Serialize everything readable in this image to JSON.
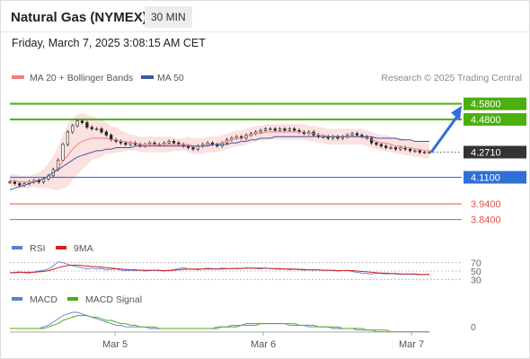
{
  "header": {
    "title": "Natural Gas (NYMEX)",
    "timeframe": "30 MIN"
  },
  "datetime": "Friday, March 7, 2025 3:08:15 AM CET",
  "legend": {
    "ma20_label": "MA 20 + Bollinger Bands",
    "ma50_label": "MA 50",
    "copyright": "Research © 2025 Trading Central",
    "ma20_color": "#f08080",
    "ma50_color": "#3b5a9a"
  },
  "chart_data": {
    "type": "line",
    "title": "",
    "y_range": [
      3.74,
      4.67
    ],
    "x_ticks": [
      "Mar 5",
      "Mar 6",
      "Mar 7"
    ],
    "price_series": [
      4.08,
      4.07,
      4.06,
      4.07,
      4.08,
      4.09,
      4.08,
      4.1,
      4.12,
      4.16,
      4.22,
      4.32,
      4.4,
      4.44,
      4.47,
      4.46,
      4.43,
      4.42,
      4.42,
      4.4,
      4.38,
      4.35,
      4.34,
      4.33,
      4.32,
      4.33,
      4.32,
      4.31,
      4.32,
      4.33,
      4.32,
      4.32,
      4.33,
      4.34,
      4.33,
      4.32,
      4.31,
      4.3,
      4.29,
      4.31,
      4.32,
      4.33,
      4.32,
      4.31,
      4.33,
      4.35,
      4.36,
      4.37,
      4.36,
      4.38,
      4.39,
      4.4,
      4.41,
      4.42,
      4.42,
      4.41,
      4.42,
      4.41,
      4.42,
      4.41,
      4.4,
      4.39,
      4.4,
      4.38,
      4.37,
      4.37,
      4.36,
      4.37,
      4.36,
      4.37,
      4.38,
      4.39,
      4.38,
      4.37,
      4.36,
      4.33,
      4.32,
      4.31,
      4.3,
      4.3,
      4.29,
      4.3,
      4.29,
      4.28,
      4.28,
      4.27,
      4.27,
      4.271
    ],
    "ma20_series": [
      4.09,
      4.09,
      4.08,
      4.08,
      4.08,
      4.09,
      4.09,
      4.1,
      4.12,
      4.14,
      4.17,
      4.21,
      4.25,
      4.29,
      4.32,
      4.34,
      4.35,
      4.36,
      4.36,
      4.36,
      4.36,
      4.35,
      4.35,
      4.34,
      4.34,
      4.33,
      4.33,
      4.32,
      4.32,
      4.32,
      4.32,
      4.32,
      4.32,
      4.32,
      4.32,
      4.32,
      4.32,
      4.32,
      4.31,
      4.31,
      4.31,
      4.32,
      4.32,
      4.32,
      4.33,
      4.34,
      4.35,
      4.36,
      4.36,
      4.37,
      4.38,
      4.39,
      4.39,
      4.4,
      4.4,
      4.4,
      4.4,
      4.4,
      4.4,
      4.4,
      4.4,
      4.4,
      4.39,
      4.39,
      4.38,
      4.38,
      4.37,
      4.37,
      4.37,
      4.37,
      4.37,
      4.37,
      4.37,
      4.37,
      4.36,
      4.35,
      4.34,
      4.33,
      4.33,
      4.32,
      4.31,
      4.31,
      4.3,
      4.3,
      4.29,
      4.29,
      4.28,
      4.28
    ],
    "ma50_series": [
      4.03,
      4.04,
      4.05,
      4.06,
      4.07,
      4.08,
      4.09,
      4.1,
      4.12,
      4.14,
      4.16,
      4.18,
      4.2,
      4.22,
      4.24,
      4.25,
      4.26,
      4.27,
      4.28,
      4.28,
      4.29,
      4.29,
      4.3,
      4.3,
      4.3,
      4.3,
      4.31,
      4.31,
      4.31,
      4.31,
      4.31,
      4.31,
      4.31,
      4.31,
      4.31,
      4.31,
      4.31,
      4.31,
      4.31,
      4.31,
      4.31,
      4.31,
      4.32,
      4.32,
      4.32,
      4.32,
      4.33,
      4.33,
      4.34,
      4.34,
      4.35,
      4.35,
      4.36,
      4.36,
      4.36,
      4.37,
      4.37,
      4.37,
      4.37,
      4.37,
      4.37,
      4.37,
      4.37,
      4.37,
      4.37,
      4.37,
      4.37,
      4.37,
      4.37,
      4.37,
      4.37,
      4.37,
      4.37,
      4.37,
      4.37,
      4.37,
      4.36,
      4.36,
      4.36,
      4.36,
      4.36,
      4.35,
      4.35,
      4.35,
      4.34,
      4.34,
      4.34,
      4.34
    ],
    "bollinger_width": [
      0.04,
      0.04,
      0.04,
      0.04,
      0.04,
      0.04,
      0.05,
      0.06,
      0.08,
      0.11,
      0.14,
      0.17,
      0.2,
      0.2,
      0.19,
      0.18,
      0.16,
      0.14,
      0.13,
      0.12,
      0.1,
      0.09,
      0.08,
      0.07,
      0.06,
      0.05,
      0.05,
      0.05,
      0.05,
      0.05,
      0.05,
      0.05,
      0.05,
      0.05,
      0.04,
      0.04,
      0.04,
      0.05,
      0.05,
      0.05,
      0.05,
      0.05,
      0.05,
      0.05,
      0.05,
      0.05,
      0.05,
      0.05,
      0.05,
      0.05,
      0.05,
      0.05,
      0.05,
      0.05,
      0.05,
      0.05,
      0.05,
      0.05,
      0.05,
      0.05,
      0.05,
      0.05,
      0.05,
      0.05,
      0.05,
      0.05,
      0.05,
      0.05,
      0.05,
      0.05,
      0.05,
      0.05,
      0.05,
      0.05,
      0.05,
      0.05,
      0.05,
      0.05,
      0.05,
      0.05,
      0.05,
      0.05,
      0.05,
      0.05,
      0.05,
      0.05,
      0.05,
      0.05
    ],
    "levels": [
      {
        "value": 4.58,
        "label": "4.5800",
        "kind": "resistance",
        "color": "#4caf10"
      },
      {
        "value": 4.48,
        "label": "4.4800",
        "kind": "resistance",
        "color": "#4caf10"
      },
      {
        "value": 4.271,
        "label": "4.2710",
        "kind": "current",
        "color": "#333333"
      },
      {
        "value": 4.11,
        "label": "4.1100",
        "kind": "pivot",
        "color": "#2f6fd6"
      },
      {
        "value": 3.94,
        "label": "3.9400",
        "kind": "support",
        "color": "#e05050"
      },
      {
        "value": 3.84,
        "label": "3.8400",
        "kind": "support",
        "color": "#e05050"
      }
    ],
    "scenario_arrow": {
      "from": 4.27,
      "to": 4.58,
      "color": "#2f6fd6"
    },
    "rsi": {
      "label": "RSI",
      "ma_label": "9MA",
      "levels": [
        70,
        50,
        30
      ],
      "level_labels": [
        "70",
        "50",
        "30"
      ],
      "rsi_color": "#5b7fd6",
      "ma_color": "#d42020",
      "series": [
        46,
        47,
        48,
        46,
        45,
        48,
        50,
        52,
        55,
        62,
        72,
        70,
        66,
        63,
        60,
        58,
        55,
        57,
        55,
        56,
        53,
        54,
        55,
        52,
        51,
        52,
        51,
        52,
        50,
        51,
        52,
        51,
        50,
        52,
        53,
        56,
        58,
        55,
        54,
        53,
        55,
        57,
        56,
        55,
        57,
        56,
        55,
        57,
        56,
        58,
        57,
        56,
        55,
        57,
        56,
        55,
        54,
        55,
        53,
        54,
        53,
        52,
        53,
        52,
        53,
        51,
        52,
        51,
        50,
        51,
        52,
        49,
        47,
        45,
        44,
        43,
        45,
        44,
        43,
        44,
        43,
        42,
        43,
        42,
        42,
        41,
        42,
        41
      ],
      "ma_series": [
        46,
        46,
        47,
        47,
        47,
        47,
        48,
        49,
        51,
        54,
        58,
        61,
        63,
        64,
        64,
        63,
        62,
        61,
        60,
        59,
        58,
        57,
        56,
        55,
        54,
        53,
        53,
        52,
        52,
        52,
        52,
        52,
        51,
        51,
        52,
        53,
        54,
        55,
        55,
        55,
        55,
        55,
        55,
        55,
        55,
        56,
        56,
        56,
        56,
        57,
        57,
        57,
        57,
        57,
        56,
        56,
        56,
        55,
        55,
        55,
        54,
        54,
        53,
        53,
        53,
        52,
        52,
        52,
        51,
        51,
        51,
        51,
        50,
        49,
        48,
        47,
        46,
        45,
        45,
        44,
        44,
        43,
        43,
        43,
        43,
        42,
        42,
        42
      ]
    },
    "macd": {
      "label": "MACD",
      "signal_label": "MACD Signal",
      "zero_label": "0",
      "macd_color": "#5b7fd6",
      "signal_color": "#4caf10",
      "series": [
        0.0,
        0.0,
        0.0,
        0.0,
        0.0,
        0.0,
        0.0,
        0.01,
        0.02,
        0.04,
        0.06,
        0.08,
        0.09,
        0.1,
        0.1,
        0.09,
        0.08,
        0.07,
        0.06,
        0.05,
        0.04,
        0.03,
        0.02,
        0.02,
        0.01,
        0.01,
        0.01,
        0.01,
        0.01,
        0.0,
        0.0,
        0.0,
        0.0,
        0.0,
        0.0,
        0.0,
        0.0,
        0.0,
        0.0,
        0.0,
        0.0,
        0.0,
        0.0,
        0.01,
        0.01,
        0.01,
        0.02,
        0.02,
        0.02,
        0.03,
        0.03,
        0.03,
        0.03,
        0.03,
        0.03,
        0.03,
        0.03,
        0.03,
        0.02,
        0.02,
        0.02,
        0.02,
        0.01,
        0.01,
        0.01,
        0.01,
        0.01,
        0.0,
        0.0,
        0.0,
        0.0,
        0.0,
        -0.01,
        -0.01,
        -0.01,
        -0.01,
        -0.02,
        -0.02,
        -0.02,
        -0.02,
        -0.02,
        -0.02,
        -0.02,
        -0.02,
        -0.02,
        -0.02,
        -0.02,
        -0.02
      ],
      "signal_series": [
        0.0,
        0.0,
        0.0,
        0.0,
        0.0,
        0.0,
        0.0,
        0.0,
        0.01,
        0.02,
        0.03,
        0.05,
        0.06,
        0.07,
        0.08,
        0.08,
        0.08,
        0.07,
        0.07,
        0.06,
        0.05,
        0.05,
        0.04,
        0.03,
        0.03,
        0.02,
        0.02,
        0.01,
        0.01,
        0.01,
        0.01,
        0.0,
        0.0,
        0.0,
        0.0,
        0.0,
        0.0,
        0.0,
        0.0,
        0.0,
        0.0,
        0.0,
        0.0,
        0.0,
        0.01,
        0.01,
        0.01,
        0.01,
        0.02,
        0.02,
        0.02,
        0.02,
        0.03,
        0.03,
        0.03,
        0.03,
        0.03,
        0.03,
        0.03,
        0.03,
        0.02,
        0.02,
        0.02,
        0.02,
        0.01,
        0.01,
        0.01,
        0.01,
        0.01,
        0.0,
        0.0,
        0.0,
        0.0,
        0.0,
        -0.01,
        -0.01,
        -0.01,
        -0.01,
        -0.01,
        -0.02,
        -0.02,
        -0.02,
        -0.02,
        -0.02,
        -0.02,
        -0.02,
        -0.02,
        -0.02
      ]
    }
  }
}
